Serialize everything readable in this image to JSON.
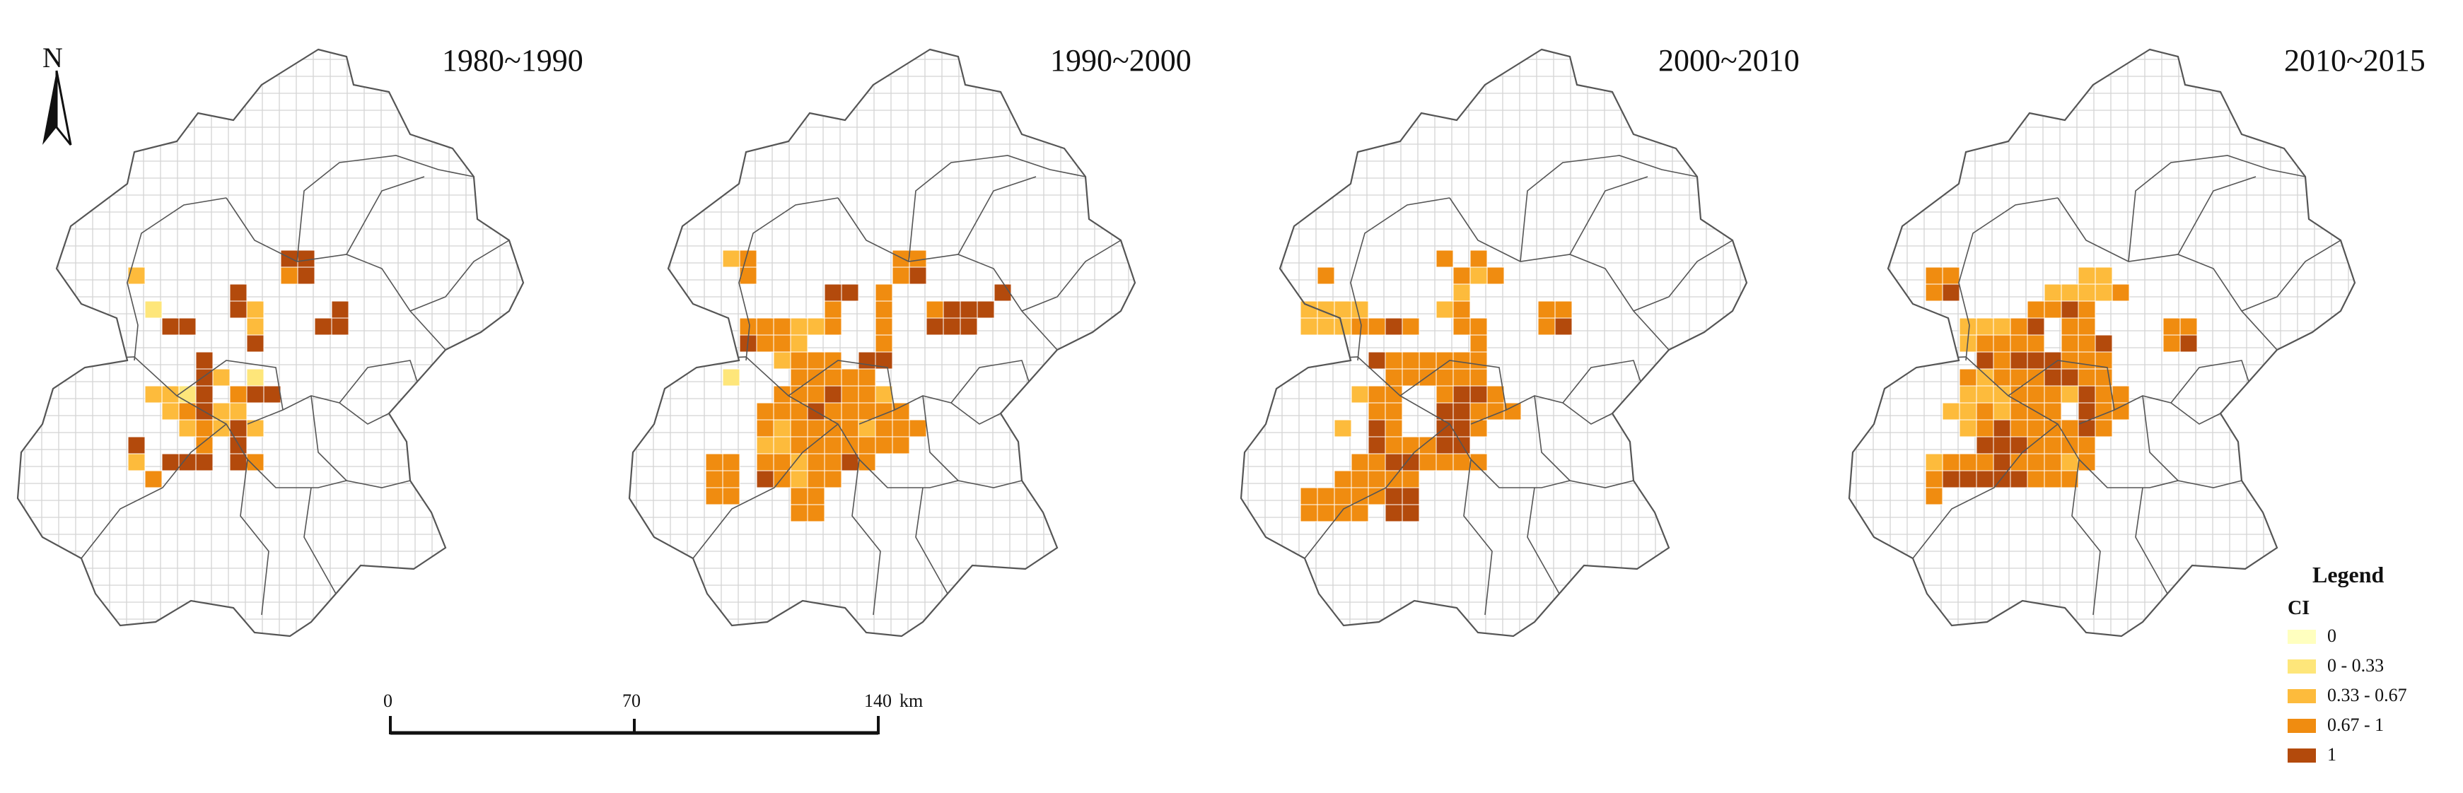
{
  "north_arrow": {
    "label": "N"
  },
  "panels": [
    {
      "title": "1980~1990"
    },
    {
      "title": "1990~2000"
    },
    {
      "title": "2000~2010"
    },
    {
      "title": "2010~2015"
    }
  ],
  "scale_bar": {
    "ticks": [
      "0",
      "70",
      "140"
    ],
    "unit": "km"
  },
  "legend": {
    "title": "Legend",
    "field": "CI",
    "classes": [
      {
        "label": "0",
        "color": "#ffffbf"
      },
      {
        "label": "0 - 0.33",
        "color": "#fee67a"
      },
      {
        "label": "0.33 - 0.67",
        "color": "#fdbb3c"
      },
      {
        "label": "0.67 - 1",
        "color": "#f08c10"
      },
      {
        "label": "1",
        "color": "#b34a0c"
      }
    ]
  },
  "colors": {
    "grid": "#d4d4d4",
    "boundary": "#555555"
  }
}
